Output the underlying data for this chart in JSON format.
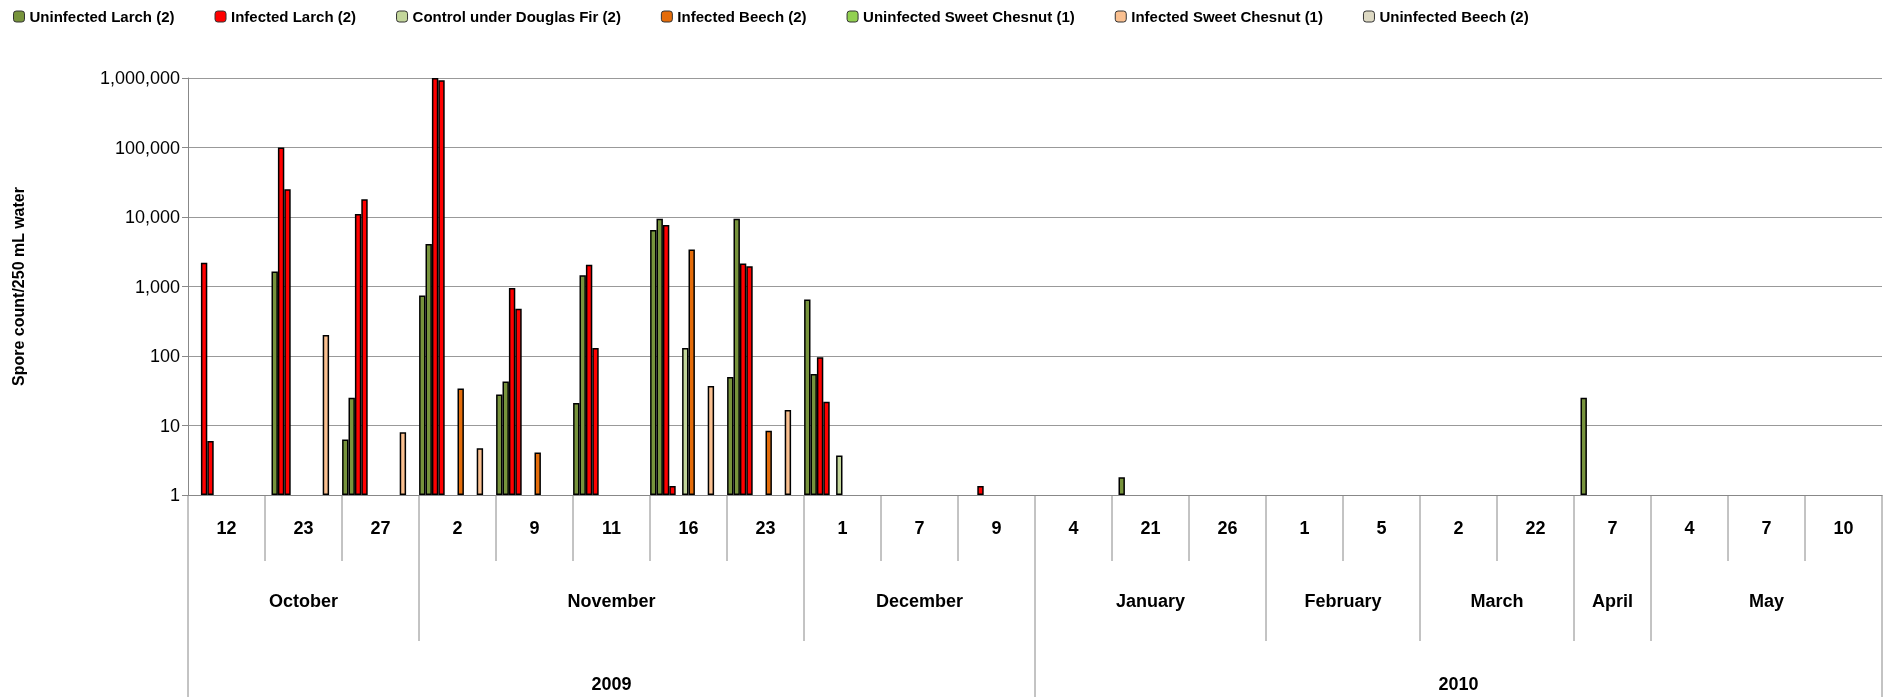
{
  "chart_data": {
    "type": "bar",
    "ylabel": "Spore count/250 mL water",
    "categories": [
      "12",
      "23",
      "27",
      "2",
      "9",
      "11",
      "16",
      "23",
      "1",
      "7",
      "9",
      "4",
      "21",
      "26",
      "1",
      "5",
      "2",
      "22",
      "7",
      "4",
      "7",
      "10"
    ],
    "annotations": [
      "October",
      "November",
      "December",
      "January",
      "February",
      "March",
      "April",
      "May",
      "2009",
      "2010"
    ],
    "log": true,
    "grid": "y",
    "legend": "top",
    "ylim": [
      1,
      1000000
    ],
    "yticks": [
      1,
      10,
      100,
      {
        "value": 1000,
        "label": "1,000"
      },
      {
        "value": 10000,
        "label": "10,000"
      },
      {
        "value": 100000,
        "label": "100,000"
      },
      {
        "value": 1000000,
        "label": "1,000,000"
      }
    ],
    "series": [
      {
        "name": "Uninfected Larch (2)",
        "color": "#77933c",
        "values": [
          null,
          null,
          6.3,
          740,
          28,
          21,
          6500,
          50,
          650,
          null,
          null,
          null,
          null,
          null,
          null,
          null,
          null,
          null,
          null,
          null,
          null,
          null
        ]
      },
      {
        "color": "#77933c",
        "values": [
          null,
          1650,
          25,
          4100,
          43,
          1450,
          9400,
          9400,
          55,
          null,
          null,
          null,
          1.8,
          null,
          null,
          null,
          null,
          null,
          25,
          null,
          null,
          null
        ]
      },
      {
        "name": "Infected Larch (2)",
        "color": "#ff0000",
        "values": [
          2200,
          100000,
          11000,
          1000000,
          950,
          2050,
          7700,
          2150,
          96,
          null,
          null,
          null,
          null,
          null,
          null,
          null,
          null,
          null,
          null,
          null,
          null,
          null
        ]
      },
      {
        "color": "#ff0000",
        "values": [
          6,
          25000,
          18000,
          930000,
          480,
          130,
          1.35,
          1950,
          22,
          null,
          1.35,
          null,
          null,
          null,
          null,
          null,
          null,
          null,
          null,
          null,
          null,
          null
        ]
      },
      {
        "name": "Control under Douglas Fir (2)",
        "color": "#c3d69b",
        "values": [
          null,
          null,
          null,
          null,
          null,
          null,
          null,
          null,
          null,
          null,
          null,
          null,
          null,
          null,
          null,
          null,
          null,
          null,
          null,
          null,
          null,
          null
        ]
      },
      {
        "color": "#c3d69b",
        "values": [
          null,
          null,
          null,
          null,
          null,
          null,
          130,
          null,
          3.7,
          null,
          null,
          null,
          null,
          null,
          null,
          null,
          null,
          null,
          null,
          null,
          null,
          null
        ]
      },
      {
        "name": "Infected Beech (2)",
        "color": "#e46c0a",
        "values": [
          null,
          null,
          null,
          34,
          4.1,
          null,
          3400,
          8.4,
          null,
          null,
          null,
          null,
          null,
          null,
          null,
          null,
          null,
          null,
          null,
          null,
          null,
          null
        ]
      },
      {
        "color": "#e46c0a",
        "values": [
          null,
          null,
          null,
          null,
          null,
          null,
          null,
          null,
          null,
          null,
          null,
          null,
          null,
          null,
          null,
          null,
          null,
          null,
          null,
          null,
          null,
          null
        ]
      },
      {
        "name": "Uninfected Sweet Chesnut (1)",
        "color": "#92d050",
        "values": [
          null,
          null,
          null,
          null,
          null,
          null,
          null,
          null,
          null,
          null,
          null,
          null,
          null,
          null,
          null,
          null,
          null,
          null,
          null,
          null,
          null,
          null
        ]
      },
      {
        "name": "Infected Sweet Chesnut (1)",
        "color": "#fac090",
        "values": [
          null,
          200,
          8,
          4.7,
          null,
          null,
          37,
          16.7,
          null,
          null,
          null,
          null,
          null,
          null,
          null,
          null,
          null,
          null,
          null,
          null,
          null,
          null
        ]
      },
      {
        "name": "Uninfected Beech (2)",
        "color": "#ddd9c3",
        "values": [
          null,
          null,
          null,
          null,
          null,
          null,
          null,
          null,
          null,
          null,
          null,
          null,
          null,
          null,
          null,
          null,
          null,
          null,
          null,
          null,
          null,
          null
        ]
      },
      {
        "color": "#ddd9c3",
        "values": [
          null,
          null,
          null,
          null,
          null,
          null,
          null,
          null,
          null,
          null,
          null,
          null,
          null,
          null,
          null,
          null,
          null,
          null,
          null,
          null,
          null,
          null
        ]
      }
    ]
  }
}
